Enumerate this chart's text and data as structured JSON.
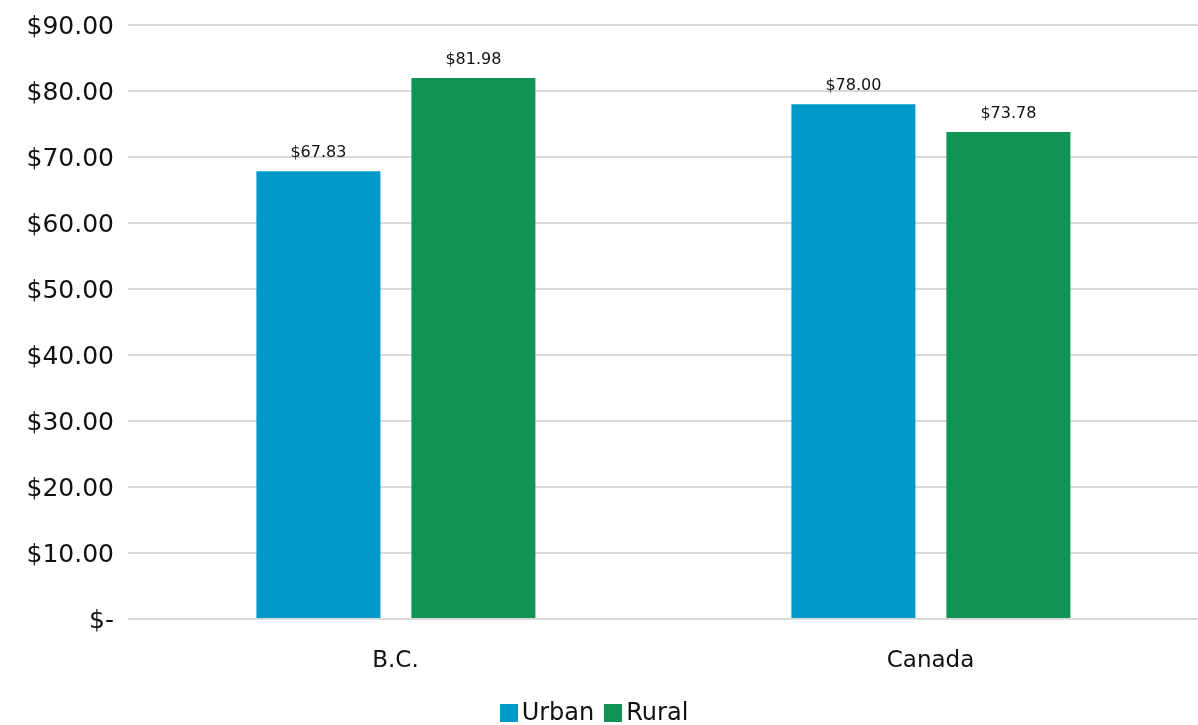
{
  "chart_data": {
    "type": "bar",
    "categories": [
      "B.C.",
      "Canada"
    ],
    "series": [
      {
        "name": "Urban",
        "color": "#0199c9",
        "values": [
          67.83,
          78.0
        ],
        "value_labels": [
          "$67.83",
          "$78.00"
        ]
      },
      {
        "name": "Rural",
        "color": "#129356",
        "values": [
          81.98,
          73.78
        ],
        "value_labels": [
          "$81.98",
          "$73.78"
        ]
      }
    ],
    "ylim": [
      0,
      90
    ],
    "yticks": [
      {
        "value": 0,
        "label": "$-"
      },
      {
        "value": 10,
        "label": "$10.00"
      },
      {
        "value": 20,
        "label": "$20.00"
      },
      {
        "value": 30,
        "label": "$30.00"
      },
      {
        "value": 40,
        "label": "$40.00"
      },
      {
        "value": 50,
        "label": "$50.00"
      },
      {
        "value": 60,
        "label": "$60.00"
      },
      {
        "value": 70,
        "label": "$70.00"
      },
      {
        "value": 80,
        "label": "$80.00"
      },
      {
        "value": 90,
        "label": "$90.00"
      }
    ],
    "grid": "y",
    "legend": "bottom"
  }
}
